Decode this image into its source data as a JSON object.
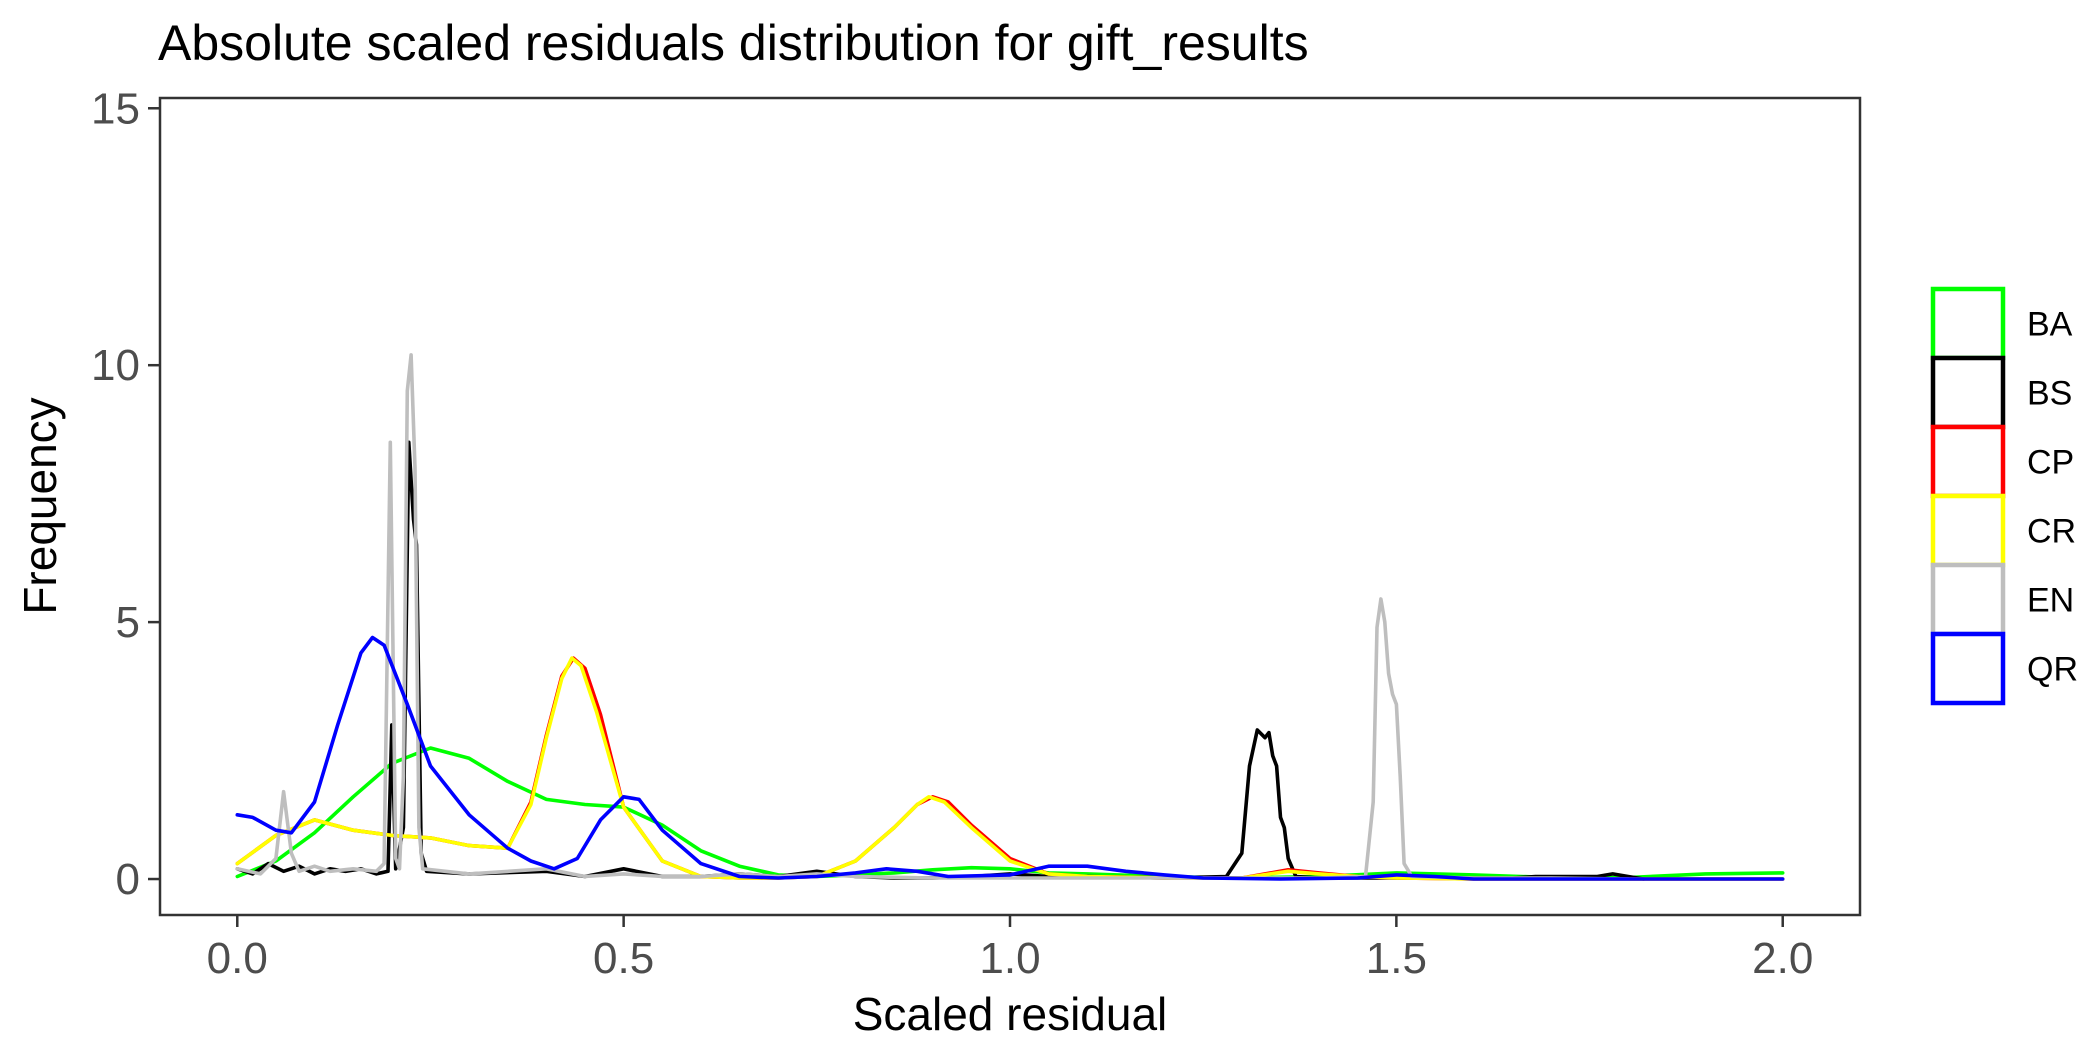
{
  "chart_data": {
    "type": "line",
    "title": "Absolute scaled residuals distribution for gift_results",
    "xlabel": "Scaled residual",
    "ylabel": "Frequency",
    "xlim": [
      -0.1,
      2.1
    ],
    "ylim": [
      -0.7,
      15.2
    ],
    "x_ticks": [
      0.0,
      0.5,
      1.0,
      1.5,
      2.0
    ],
    "x_tick_labels": [
      "0.0",
      "0.5",
      "1.0",
      "1.5",
      "2.0"
    ],
    "y_ticks": [
      0,
      5,
      10,
      15
    ],
    "y_tick_labels": [
      "0",
      "5",
      "10",
      "15"
    ],
    "grid": false,
    "legend_position": "right",
    "series": [
      {
        "name": "BA",
        "color": "#00ff00",
        "points": [
          [
            0.0,
            0.05
          ],
          [
            0.05,
            0.35
          ],
          [
            0.1,
            0.9
          ],
          [
            0.15,
            1.6
          ],
          [
            0.2,
            2.25
          ],
          [
            0.25,
            2.55
          ],
          [
            0.3,
            2.35
          ],
          [
            0.35,
            1.9
          ],
          [
            0.4,
            1.55
          ],
          [
            0.45,
            1.45
          ],
          [
            0.5,
            1.4
          ],
          [
            0.55,
            1.05
          ],
          [
            0.6,
            0.55
          ],
          [
            0.65,
            0.25
          ],
          [
            0.7,
            0.08
          ],
          [
            0.75,
            0.05
          ],
          [
            0.8,
            0.08
          ],
          [
            0.85,
            0.12
          ],
          [
            0.9,
            0.18
          ],
          [
            0.95,
            0.22
          ],
          [
            1.0,
            0.2
          ],
          [
            1.05,
            0.12
          ],
          [
            1.1,
            0.1
          ],
          [
            1.2,
            0.05
          ],
          [
            1.3,
            0.02
          ],
          [
            1.4,
            0.05
          ],
          [
            1.5,
            0.12
          ],
          [
            1.6,
            0.08
          ],
          [
            1.7,
            0.03
          ],
          [
            1.8,
            0.03
          ],
          [
            1.9,
            0.1
          ],
          [
            2.0,
            0.12
          ]
        ]
      },
      {
        "name": "BS",
        "color": "#000000",
        "points": [
          [
            0.0,
            0.2
          ],
          [
            0.02,
            0.1
          ],
          [
            0.04,
            0.3
          ],
          [
            0.06,
            0.15
          ],
          [
            0.08,
            0.25
          ],
          [
            0.1,
            0.1
          ],
          [
            0.12,
            0.2
          ],
          [
            0.14,
            0.15
          ],
          [
            0.16,
            0.2
          ],
          [
            0.18,
            0.1
          ],
          [
            0.195,
            0.15
          ],
          [
            0.2,
            3.0
          ],
          [
            0.205,
            0.2
          ],
          [
            0.215,
            1.0
          ],
          [
            0.222,
            8.5
          ],
          [
            0.228,
            7.0
          ],
          [
            0.232,
            6.5
          ],
          [
            0.238,
            0.5
          ],
          [
            0.245,
            0.15
          ],
          [
            0.3,
            0.1
          ],
          [
            0.4,
            0.15
          ],
          [
            0.45,
            0.05
          ],
          [
            0.5,
            0.2
          ],
          [
            0.55,
            0.05
          ],
          [
            0.6,
            0.05
          ],
          [
            0.65,
            0.1
          ],
          [
            0.7,
            0.05
          ],
          [
            0.75,
            0.15
          ],
          [
            0.8,
            0.05
          ],
          [
            0.85,
            0.02
          ],
          [
            0.9,
            0.02
          ],
          [
            0.95,
            0.05
          ],
          [
            1.0,
            0.1
          ],
          [
            1.05,
            0.05
          ],
          [
            1.1,
            0.05
          ],
          [
            1.2,
            0.02
          ],
          [
            1.28,
            0.05
          ],
          [
            1.3,
            0.5
          ],
          [
            1.31,
            2.2
          ],
          [
            1.32,
            2.9
          ],
          [
            1.33,
            2.75
          ],
          [
            1.335,
            2.85
          ],
          [
            1.34,
            2.4
          ],
          [
            1.345,
            2.2
          ],
          [
            1.35,
            1.2
          ],
          [
            1.355,
            1.0
          ],
          [
            1.36,
            0.4
          ],
          [
            1.37,
            0.05
          ],
          [
            1.4,
            0.02
          ],
          [
            1.5,
            0.02
          ],
          [
            1.6,
            0.02
          ],
          [
            1.65,
            0.02
          ],
          [
            1.68,
            0.05
          ],
          [
            1.72,
            0.05
          ],
          [
            1.76,
            0.05
          ],
          [
            1.78,
            0.1
          ],
          [
            1.8,
            0.05
          ],
          [
            1.82,
            0.0
          ]
        ]
      },
      {
        "name": "CP",
        "color": "#ff0000",
        "points": [
          [
            0.0,
            0.3
          ],
          [
            0.05,
            0.85
          ],
          [
            0.1,
            1.15
          ],
          [
            0.15,
            0.95
          ],
          [
            0.2,
            0.85
          ],
          [
            0.25,
            0.8
          ],
          [
            0.3,
            0.65
          ],
          [
            0.35,
            0.6
          ],
          [
            0.38,
            1.5
          ],
          [
            0.4,
            2.8
          ],
          [
            0.42,
            3.95
          ],
          [
            0.435,
            4.3
          ],
          [
            0.45,
            4.1
          ],
          [
            0.47,
            3.2
          ],
          [
            0.5,
            1.4
          ],
          [
            0.55,
            0.35
          ],
          [
            0.6,
            0.05
          ],
          [
            0.65,
            0.02
          ],
          [
            0.7,
            0.02
          ],
          [
            0.75,
            0.05
          ],
          [
            0.8,
            0.35
          ],
          [
            0.85,
            1.0
          ],
          [
            0.88,
            1.45
          ],
          [
            0.9,
            1.6
          ],
          [
            0.92,
            1.5
          ],
          [
            0.95,
            1.05
          ],
          [
            1.0,
            0.4
          ],
          [
            1.05,
            0.1
          ],
          [
            1.1,
            0.05
          ],
          [
            1.2,
            0.02
          ],
          [
            1.3,
            0.02
          ],
          [
            1.36,
            0.18
          ],
          [
            1.4,
            0.12
          ],
          [
            1.45,
            0.05
          ],
          [
            1.5,
            0.02
          ],
          [
            1.6,
            0.0
          ],
          [
            2.0,
            0.0
          ]
        ]
      },
      {
        "name": "CR",
        "color": "#ffff00",
        "points": [
          [
            0.0,
            0.3
          ],
          [
            0.05,
            0.85
          ],
          [
            0.1,
            1.15
          ],
          [
            0.15,
            0.95
          ],
          [
            0.2,
            0.85
          ],
          [
            0.25,
            0.8
          ],
          [
            0.3,
            0.65
          ],
          [
            0.35,
            0.6
          ],
          [
            0.38,
            1.45
          ],
          [
            0.4,
            2.75
          ],
          [
            0.42,
            3.9
          ],
          [
            0.433,
            4.3
          ],
          [
            0.445,
            4.15
          ],
          [
            0.465,
            3.25
          ],
          [
            0.5,
            1.4
          ],
          [
            0.55,
            0.35
          ],
          [
            0.6,
            0.05
          ],
          [
            0.65,
            0.02
          ],
          [
            0.7,
            0.02
          ],
          [
            0.75,
            0.05
          ],
          [
            0.8,
            0.35
          ],
          [
            0.85,
            1.0
          ],
          [
            0.88,
            1.45
          ],
          [
            0.895,
            1.6
          ],
          [
            0.915,
            1.5
          ],
          [
            0.95,
            1.0
          ],
          [
            1.0,
            0.35
          ],
          [
            1.05,
            0.1
          ],
          [
            1.1,
            0.05
          ],
          [
            1.2,
            0.02
          ],
          [
            1.3,
            0.02
          ],
          [
            1.36,
            0.15
          ],
          [
            1.4,
            0.1
          ],
          [
            1.45,
            0.05
          ],
          [
            1.5,
            0.02
          ],
          [
            1.6,
            0.0
          ],
          [
            2.0,
            0.0
          ]
        ]
      },
      {
        "name": "EN",
        "color": "#bebebe",
        "points": [
          [
            0.0,
            0.2
          ],
          [
            0.03,
            0.1
          ],
          [
            0.05,
            0.4
          ],
          [
            0.06,
            1.7
          ],
          [
            0.07,
            0.5
          ],
          [
            0.08,
            0.15
          ],
          [
            0.1,
            0.25
          ],
          [
            0.12,
            0.15
          ],
          [
            0.15,
            0.2
          ],
          [
            0.18,
            0.15
          ],
          [
            0.19,
            0.3
          ],
          [
            0.198,
            8.5
          ],
          [
            0.205,
            0.4
          ],
          [
            0.21,
            0.2
          ],
          [
            0.215,
            2.0
          ],
          [
            0.22,
            9.5
          ],
          [
            0.225,
            10.2
          ],
          [
            0.23,
            8.0
          ],
          [
            0.235,
            1.0
          ],
          [
            0.24,
            0.2
          ],
          [
            0.3,
            0.1
          ],
          [
            0.4,
            0.2
          ],
          [
            0.45,
            0.05
          ],
          [
            0.5,
            0.1
          ],
          [
            0.55,
            0.05
          ],
          [
            0.6,
            0.05
          ],
          [
            0.65,
            0.1
          ],
          [
            0.7,
            0.05
          ],
          [
            0.75,
            0.1
          ],
          [
            0.8,
            0.05
          ],
          [
            0.9,
            0.02
          ],
          [
            1.0,
            0.02
          ],
          [
            1.1,
            0.02
          ],
          [
            1.2,
            0.02
          ],
          [
            1.3,
            0.02
          ],
          [
            1.4,
            0.02
          ],
          [
            1.46,
            0.05
          ],
          [
            1.47,
            1.5
          ],
          [
            1.475,
            4.9
          ],
          [
            1.48,
            5.45
          ],
          [
            1.485,
            5.0
          ],
          [
            1.49,
            4.0
          ],
          [
            1.495,
            3.6
          ],
          [
            1.5,
            3.4
          ],
          [
            1.505,
            2.0
          ],
          [
            1.51,
            0.3
          ],
          [
            1.52,
            0.05
          ],
          [
            1.6,
            0.02
          ],
          [
            1.7,
            0.02
          ],
          [
            1.8,
            0.0
          ]
        ]
      },
      {
        "name": "QR",
        "color": "#0000ff",
        "points": [
          [
            0.0,
            1.25
          ],
          [
            0.02,
            1.2
          ],
          [
            0.05,
            0.95
          ],
          [
            0.07,
            0.9
          ],
          [
            0.1,
            1.5
          ],
          [
            0.13,
            3.0
          ],
          [
            0.16,
            4.4
          ],
          [
            0.175,
            4.7
          ],
          [
            0.19,
            4.55
          ],
          [
            0.22,
            3.4
          ],
          [
            0.25,
            2.2
          ],
          [
            0.3,
            1.25
          ],
          [
            0.35,
            0.6
          ],
          [
            0.38,
            0.35
          ],
          [
            0.41,
            0.2
          ],
          [
            0.44,
            0.4
          ],
          [
            0.47,
            1.15
          ],
          [
            0.5,
            1.6
          ],
          [
            0.52,
            1.55
          ],
          [
            0.55,
            0.95
          ],
          [
            0.6,
            0.3
          ],
          [
            0.65,
            0.05
          ],
          [
            0.7,
            0.02
          ],
          [
            0.75,
            0.05
          ],
          [
            0.8,
            0.12
          ],
          [
            0.84,
            0.2
          ],
          [
            0.88,
            0.15
          ],
          [
            0.92,
            0.05
          ],
          [
            1.0,
            0.08
          ],
          [
            1.05,
            0.25
          ],
          [
            1.1,
            0.25
          ],
          [
            1.15,
            0.15
          ],
          [
            1.2,
            0.08
          ],
          [
            1.25,
            0.02
          ],
          [
            1.35,
            0.0
          ],
          [
            1.45,
            0.02
          ],
          [
            1.5,
            0.08
          ],
          [
            1.55,
            0.05
          ],
          [
            1.6,
            0.0
          ],
          [
            2.0,
            0.0
          ]
        ]
      }
    ]
  }
}
